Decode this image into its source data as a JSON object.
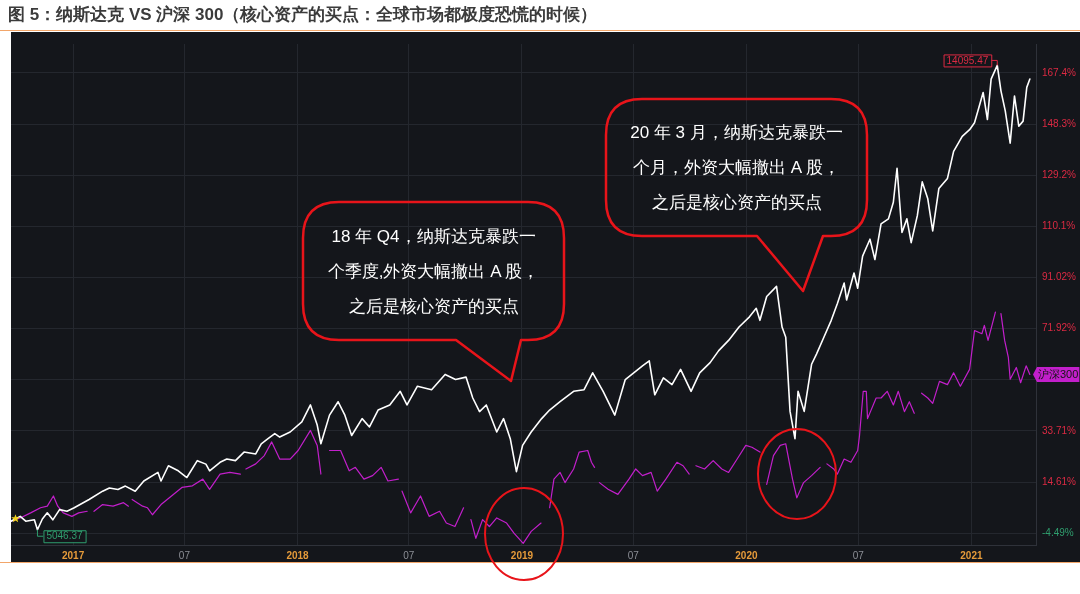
{
  "chart_data": {
    "type": "line",
    "title": "图 5：纳斯达克 VS 沪深 300（核心资产的买点：全球市场都极度恐慌的时候）",
    "xlim": [
      "2016-09-22",
      "2021-04-16"
    ],
    "xticks": [
      {
        "value": "2017-01-01",
        "label": "2017"
      },
      {
        "value": "2017-07-01",
        "label": "07"
      },
      {
        "value": "2018-01-01",
        "label": "2018"
      },
      {
        "value": "2018-07-01",
        "label": "07"
      },
      {
        "value": "2019-01-01",
        "label": "2019"
      },
      {
        "value": "2019-07-01",
        "label": "07"
      },
      {
        "value": "2020-01-01",
        "label": "2020"
      },
      {
        "value": "2020-07-01",
        "label": "07"
      },
      {
        "value": "2021-01-01",
        "label": "2021"
      }
    ],
    "ylim": [
      -8.9,
      178.2
    ],
    "yticks": [
      {
        "value": -4.49,
        "label": "-4.49%"
      },
      {
        "value": 14.61,
        "label": "14.61%"
      },
      {
        "value": 33.71,
        "label": "33.71%"
      },
      {
        "value": 52.81,
        "label": null
      },
      {
        "value": 71.92,
        "label": "71.92%"
      },
      {
        "value": 91.02,
        "label": "91.02%"
      },
      {
        "value": 110.1,
        "label": "110.1%"
      },
      {
        "value": 129.2,
        "label": "129.2%"
      },
      {
        "value": 148.3,
        "label": "148.3%"
      },
      {
        "value": 167.4,
        "label": "167.4%"
      }
    ],
    "grid": true,
    "marker": "none",
    "series": [
      {
        "color": "#ffffff",
        "x": [
          "2016-09-22",
          "2016-10-07",
          "2016-10-16",
          "2016-10-30",
          "2016-11-04",
          "2016-11-12",
          "2016-11-20",
          "2016-11-29",
          "2016-12-10",
          "2016-12-22",
          "2017-01-02",
          "2017-01-27",
          "2017-02-18",
          "2017-03-01",
          "2017-03-15",
          "2017-03-27",
          "2017-04-12",
          "2017-04-26",
          "2017-05-19",
          "2017-05-24",
          "2017-06-05",
          "2017-06-21",
          "2017-07-05",
          "2017-07-22",
          "2017-08-05",
          "2017-08-11",
          "2017-08-28",
          "2017-09-08",
          "2017-09-22",
          "2017-10-06",
          "2017-10-25",
          "2017-11-03",
          "2017-11-14",
          "2017-11-25",
          "2017-12-03",
          "2017-12-20",
          "2018-01-08",
          "2018-01-22",
          "2018-02-02",
          "2018-02-08",
          "2018-02-22",
          "2018-03-08",
          "2018-03-19",
          "2018-03-30",
          "2018-04-16",
          "2018-04-28",
          "2018-05-12",
          "2018-05-31",
          "2018-06-17",
          "2018-06-28",
          "2018-07-15",
          "2018-08-07",
          "2018-08-29",
          "2018-09-15",
          "2018-10-02",
          "2018-10-13",
          "2018-10-24",
          "2018-11-04",
          "2018-11-21",
          "2018-12-02",
          "2018-12-13",
          "2018-12-23",
          "2019-01-02",
          "2019-01-16",
          "2019-02-02",
          "2019-02-15",
          "2019-03-04",
          "2019-03-26",
          "2019-04-12",
          "2019-04-26",
          "2019-05-13",
          "2019-06-01",
          "2019-06-18",
          "2019-07-16",
          "2019-07-27",
          "2019-08-05",
          "2019-08-19",
          "2019-09-02",
          "2019-09-16",
          "2019-10-03",
          "2019-10-17",
          "2019-11-03",
          "2019-11-17",
          "2019-12-03",
          "2019-12-20",
          "2020-01-06",
          "2020-01-17",
          "2020-01-23",
          "2020-02-03",
          "2020-02-19",
          "2020-02-28",
          "2020-03-05",
          "2020-03-12",
          "2020-03-20",
          "2020-03-25",
          "2020-04-04",
          "2020-04-16",
          "2020-04-24",
          "2020-05-06",
          "2020-05-18",
          "2020-05-28",
          "2020-06-08",
          "2020-06-12",
          "2020-06-24",
          "2020-06-30",
          "2020-07-08",
          "2020-07-20",
          "2020-07-28",
          "2020-08-07",
          "2020-08-19",
          "2020-08-27",
          "2020-09-02",
          "2020-09-10",
          "2020-09-18",
          "2020-09-25",
          "2020-10-05",
          "2020-10-13",
          "2020-10-22",
          "2020-10-30",
          "2020-11-09",
          "2020-11-23",
          "2020-12-03",
          "2020-12-17",
          "2020-12-29",
          "2021-01-06",
          "2021-01-13",
          "2021-01-20",
          "2021-01-27",
          "2021-02-02",
          "2021-02-12",
          "2021-02-18",
          "2021-02-25",
          "2021-03-05",
          "2021-03-12",
          "2021-03-19",
          "2021-03-26",
          "2021-04-01",
          "2021-04-06"
        ],
        "values": [
          0,
          1.8,
          0,
          0.5,
          -3.2,
          0.8,
          3.1,
          0.5,
          4.3,
          3.7,
          4.9,
          8.1,
          11.2,
          12.4,
          11.8,
          13.1,
          11.2,
          15.0,
          18.2,
          15.0,
          20.7,
          18.8,
          16.3,
          22.6,
          21.3,
          18.8,
          22.0,
          23.2,
          22.6,
          25.8,
          25.1,
          28.9,
          30.8,
          32.7,
          31.4,
          33.3,
          37.1,
          43.4,
          35.9,
          28.9,
          39.6,
          44.6,
          39.6,
          32.0,
          38.3,
          35.2,
          41.5,
          43.4,
          48.5,
          43.4,
          50.4,
          49.1,
          54.8,
          52.9,
          53.8,
          46.0,
          40.9,
          43.4,
          33.3,
          38.3,
          30.8,
          18.5,
          28.3,
          33.3,
          38.3,
          41.5,
          44.6,
          48.5,
          49.1,
          55.4,
          48.5,
          39.6,
          52.9,
          58.0,
          59.9,
          47.2,
          53.5,
          51.0,
          56.7,
          48.5,
          55.4,
          59.2,
          63.7,
          67.5,
          72.5,
          76.3,
          79.5,
          75.0,
          83.9,
          87.7,
          72.5,
          68.7,
          41.0,
          30.8,
          48.5,
          41.0,
          58.6,
          62.4,
          68.7,
          75.0,
          81.3,
          88.9,
          82.6,
          92.7,
          87.0,
          99.0,
          105.3,
          97.7,
          111.0,
          112.9,
          119.1,
          131.8,
          107.8,
          112.9,
          104.0,
          114.1,
          126.7,
          120.4,
          108.4,
          124.2,
          128.0,
          138.1,
          143.7,
          146.2,
          148.8,
          154.4,
          160.1,
          150.0,
          165.1,
          170.2,
          160.7,
          153.2,
          141.2,
          158.8,
          147.5,
          149.4,
          162.0,
          165.1
        ]
      },
      {
        "name": "沪深300",
        "color": "#c21fcb",
        "x": [
          "2016-09-22",
          "2016-10-07",
          "2016-10-24",
          "2016-11-09",
          "2016-11-20",
          "2016-11-30",
          "2016-12-07",
          "2016-12-16",
          "2016-12-30",
          "2017-01-10",
          "2017-01-24",
          "2017-01-30",
          "2017-02-04",
          "2017-02-18",
          "2017-03-07",
          "2017-03-24",
          "2017-04-01",
          "2017-04-03",
          "2017-04-07",
          "2017-04-24",
          "2017-05-02",
          "2017-05-10",
          "2017-05-24",
          "2017-06-10",
          "2017-06-27",
          "2017-07-14",
          "2017-07-31",
          "2017-08-11",
          "2017-08-28",
          "2017-09-13",
          "2017-09-30",
          "2017-10-04",
          "2017-10-09",
          "2017-10-25",
          "2017-11-08",
          "2017-11-20",
          "2017-12-03",
          "2017-12-20",
          "2018-01-02",
          "2018-01-22",
          "2018-02-02",
          "2018-02-08",
          "2018-02-16",
          "2018-02-22",
          "2018-03-12",
          "2018-03-26",
          "2018-04-05",
          "2018-04-19",
          "2018-05-03",
          "2018-05-17",
          "2018-05-28",
          "2018-06-14",
          "2018-06-18",
          "2018-06-20",
          "2018-07-04",
          "2018-07-20",
          "2018-08-03",
          "2018-08-20",
          "2018-08-31",
          "2018-09-14",
          "2018-09-28",
          "2018-10-03",
          "2018-10-10",
          "2018-10-18",
          "2018-10-29",
          "2018-11-09",
          "2018-11-21",
          "2018-12-07",
          "2018-12-19",
          "2019-01-03",
          "2019-01-16",
          "2019-02-01",
          "2019-02-07",
          "2019-02-15",
          "2019-02-22",
          "2019-03-04",
          "2019-03-12",
          "2019-03-26",
          "2019-04-04",
          "2019-04-18",
          "2019-04-24",
          "2019-04-29",
          "2019-05-02",
          "2019-05-07",
          "2019-05-21",
          "2019-06-06",
          "2019-06-24",
          "2019-07-05",
          "2019-07-16",
          "2019-07-30",
          "2019-08-09",
          "2019-08-23",
          "2019-09-10",
          "2019-09-20",
          "2019-09-30",
          "2019-10-04",
          "2019-10-11",
          "2019-10-25",
          "2019-11-08",
          "2019-11-22",
          "2019-12-03",
          "2019-12-17",
          "2019-12-31",
          "2020-01-10",
          "2020-01-23",
          "2020-01-28",
          "2020-02-03",
          "2020-02-14",
          "2020-02-25",
          "2020-03-05",
          "2020-03-16",
          "2020-03-23",
          "2020-04-03",
          "2020-04-16",
          "2020-04-24",
          "2020-04-30",
          "2020-05-03",
          "2020-05-11",
          "2020-05-22",
          "2020-05-28",
          "2020-06-08",
          "2020-06-19",
          "2020-06-30",
          "2020-07-03",
          "2020-07-09",
          "2020-07-14",
          "2020-07-16",
          "2020-07-30",
          "2020-08-07",
          "2020-08-17",
          "2020-08-27",
          "2020-09-04",
          "2020-09-14",
          "2020-09-22",
          "2020-09-30",
          "2020-10-04",
          "2020-10-12",
          "2020-10-22",
          "2020-10-30",
          "2020-11-10",
          "2020-11-23",
          "2020-12-03",
          "2020-12-14",
          "2020-12-29",
          "2021-01-06",
          "2021-01-18",
          "2021-01-22",
          "2021-01-28",
          "2021-02-09",
          "2021-02-14",
          "2021-02-18",
          "2021-02-24",
          "2021-03-02",
          "2021-03-05",
          "2021-03-15",
          "2021-03-22",
          "2021-03-31",
          "2021-04-06"
        ],
        "values": [
          0,
          1.2,
          3.1,
          5.0,
          5.6,
          9.4,
          5.6,
          3.1,
          1.8,
          3.1,
          3.7,
          null,
          3.7,
          6.2,
          5.6,
          6.9,
          5.6,
          null,
          8.1,
          5.6,
          5.0,
          2.4,
          6.2,
          9.4,
          12.6,
          13.2,
          15.7,
          11.9,
          17.6,
          18.2,
          17.6,
          null,
          19.5,
          21.4,
          24.5,
          29.6,
          23.2,
          23.2,
          26.4,
          33.9,
          28.3,
          17.6,
          null,
          26.4,
          26.4,
          18.8,
          20.1,
          15.7,
          17.0,
          20.1,
          15.0,
          15.7,
          null,
          11.2,
          3.1,
          9.4,
          1.8,
          3.7,
          -0.7,
          -2.0,
          5.0,
          null,
          0.6,
          -6.4,
          0.6,
          -2.0,
          1.2,
          -0.7,
          -4.5,
          -8.3,
          -3.8,
          -0.7,
          null,
          5.0,
          15.7,
          18.2,
          14.4,
          19.5,
          25.8,
          26.4,
          22.0,
          20.1,
          null,
          14.4,
          11.9,
          10.0,
          15.7,
          19.5,
          17.0,
          18.2,
          11.2,
          15.7,
          22.0,
          20.7,
          17.6,
          null,
          20.7,
          19.5,
          22.6,
          19.5,
          18.2,
          23.2,
          28.3,
          27.6,
          25.8,
          null,
          13.7,
          24.5,
          28.3,
          28.9,
          15.7,
          8.7,
          14.4,
          17.0,
          18.8,
          20.1,
          null,
          21.4,
          19.5,
          17.6,
          23.2,
          22.0,
          26.4,
          32.0,
          48.5,
          48.5,
          38.3,
          46.0,
          46.0,
          48.5,
          43.4,
          48.5,
          40.9,
          44.6,
          40.3,
          null,
          47.8,
          46.0,
          44.0,
          52.2,
          51.0,
          55.4,
          50.4,
          56.7,
          71.2,
          70.0,
          73.1,
          67.5,
          78.1,
          null,
          77.5,
          67.5,
          61.2,
          53.0,
          57.4,
          51.7,
          58.0,
          54.8
        ]
      }
    ],
    "annotations": [
      {
        "text": "14095.47",
        "x": "2021-02-12",
        "y": 170.2
      },
      {
        "text": "5046.37",
        "x": "2016-11-04",
        "y": -3.2
      },
      "18 年 Q4，纳斯达克暴跌一个季度,外资大幅撤出 A 股，之后是核心资产的买点",
      "20 年 3 月，纳斯达克暴跌一个月，外资大幅撤出 A 股，之后是核心资产的买点"
    ]
  }
}
